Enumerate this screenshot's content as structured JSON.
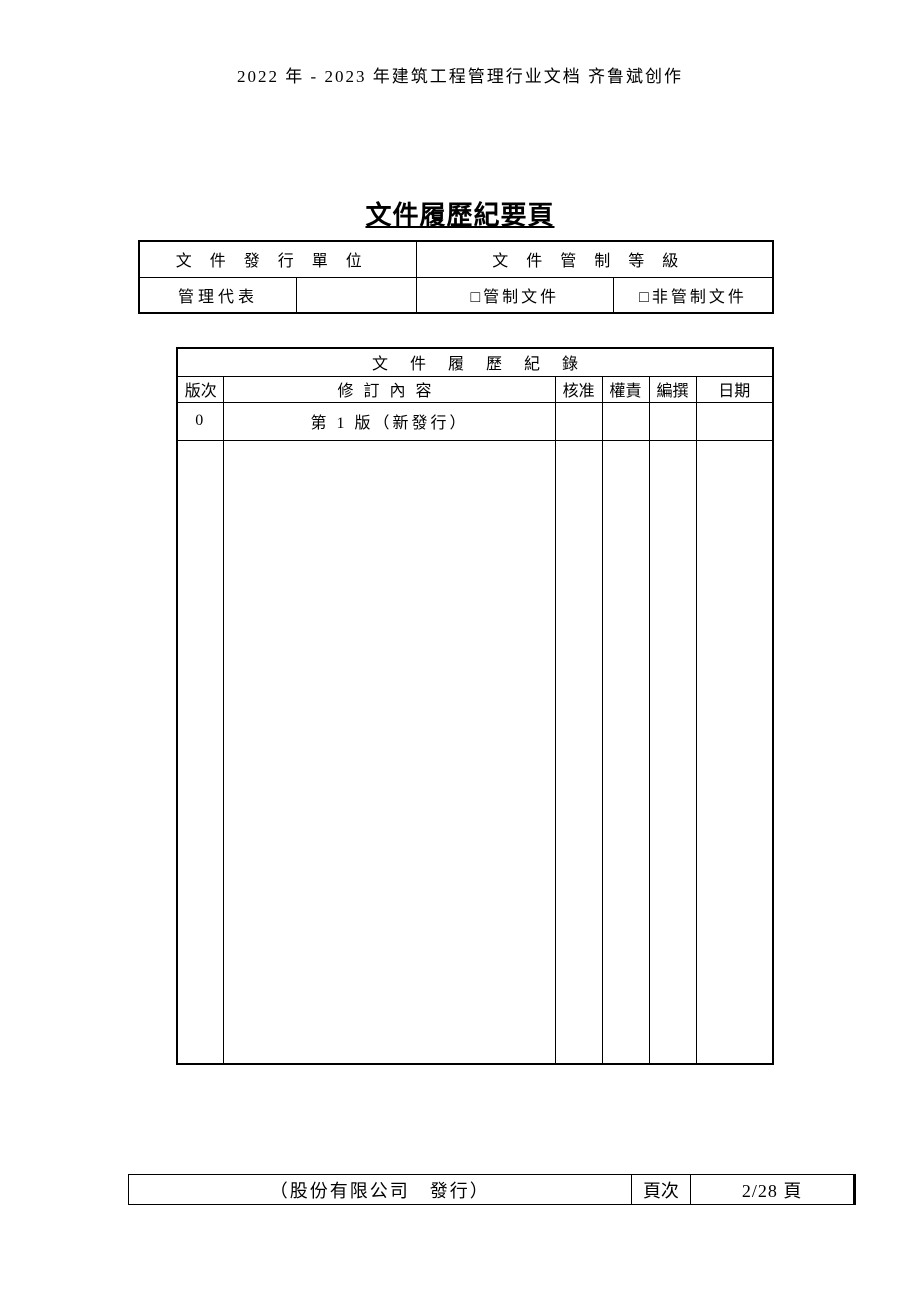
{
  "header": "2022 年 - 2023 年建筑工程管理行业文档  齐鲁斌创作",
  "title": "文件履歷紀要頁",
  "table1": {
    "row1": {
      "c1": "文件發行單位",
      "c2": "文件管制等級"
    },
    "row2": {
      "c1": "管理代表",
      "c2": "",
      "c3": "□管制文件",
      "c4": "□非管制文件"
    }
  },
  "table2": {
    "title": "文件履歷紀錄",
    "headers": {
      "ver": "版次",
      "content": "修訂內容",
      "approve": "核准",
      "resp": "權責",
      "edit": "編撰",
      "date": "日期"
    },
    "rows": [
      {
        "ver": "0",
        "content": "第 1 版（新發行）",
        "approve": "",
        "resp": "",
        "edit": "",
        "date": ""
      }
    ]
  },
  "footer": {
    "issuer": "（股份有限公司　發行）",
    "page_label": "頁次",
    "page_value": "2/28 頁"
  }
}
